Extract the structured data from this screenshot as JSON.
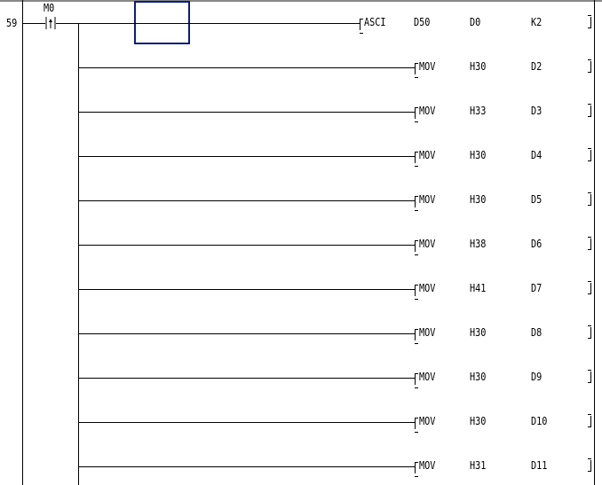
{
  "ladder": {
    "step_number": "59",
    "contact": {
      "device": "M0",
      "type": "rising-edge-pulse",
      "icon": "rising-edge-contact-icon"
    },
    "cursor_color": "#0a1c80",
    "instructions": [
      {
        "op": "ASCI",
        "operands": [
          "D50",
          "D0",
          "K2"
        ]
      },
      {
        "op": "MOV",
        "operands": [
          "H30",
          "D2"
        ]
      },
      {
        "op": "MOV",
        "operands": [
          "H33",
          "D3"
        ]
      },
      {
        "op": "MOV",
        "operands": [
          "H30",
          "D4"
        ]
      },
      {
        "op": "MOV",
        "operands": [
          "H30",
          "D5"
        ]
      },
      {
        "op": "MOV",
        "operands": [
          "H38",
          "D6"
        ]
      },
      {
        "op": "MOV",
        "operands": [
          "H41",
          "D7"
        ]
      },
      {
        "op": "MOV",
        "operands": [
          "H30",
          "D8"
        ]
      },
      {
        "op": "MOV",
        "operands": [
          "H30",
          "D9"
        ]
      },
      {
        "op": "MOV",
        "operands": [
          "H30",
          "D10"
        ]
      },
      {
        "op": "MOV",
        "operands": [
          "H31",
          "D11"
        ]
      }
    ]
  }
}
